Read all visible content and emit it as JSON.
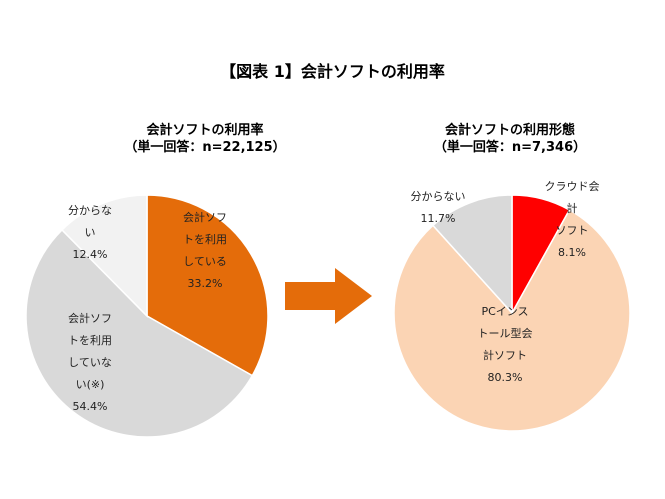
{
  "title": "【図表 1】会計ソフトの利用率",
  "chart_data": [
    {
      "type": "pie",
      "title": "会計ソフトの利用率",
      "subtitle": "（単一回答：n=22,125）",
      "slices": [
        {
          "label_lines": [
            "会計ソフ",
            "トを利用",
            "している"
          ],
          "pct_text": "33.2%",
          "value": 33.2,
          "color": "#E46C0A"
        },
        {
          "label_lines": [
            "会計ソフ",
            "トを利用",
            "していな",
            "い(※)"
          ],
          "pct_text": "54.4%",
          "value": 54.4,
          "color": "#D9D9D9"
        },
        {
          "label_lines": [
            "分からな",
            "い"
          ],
          "pct_text": "12.4%",
          "value": 12.4,
          "color": "#F2F2F2"
        }
      ]
    },
    {
      "type": "pie",
      "title": "会計ソフトの利用形態",
      "subtitle": "（単一回答：n=7,346）",
      "slices": [
        {
          "label_lines": [
            "クラウド会",
            "計",
            "ソフト"
          ],
          "pct_text": "8.1%",
          "value": 8.1,
          "color": "#FF0000"
        },
        {
          "label_lines": [
            "PCインス",
            "トール型会",
            "計ソフト"
          ],
          "pct_text": "80.3%",
          "value": 80.3,
          "color": "#FBD4B4"
        },
        {
          "label_lines": [
            "分からない"
          ],
          "pct_text": "11.7%",
          "value": 11.7,
          "color": "#D9D9D9"
        }
      ]
    }
  ],
  "arrow_color": "#E46C0A"
}
